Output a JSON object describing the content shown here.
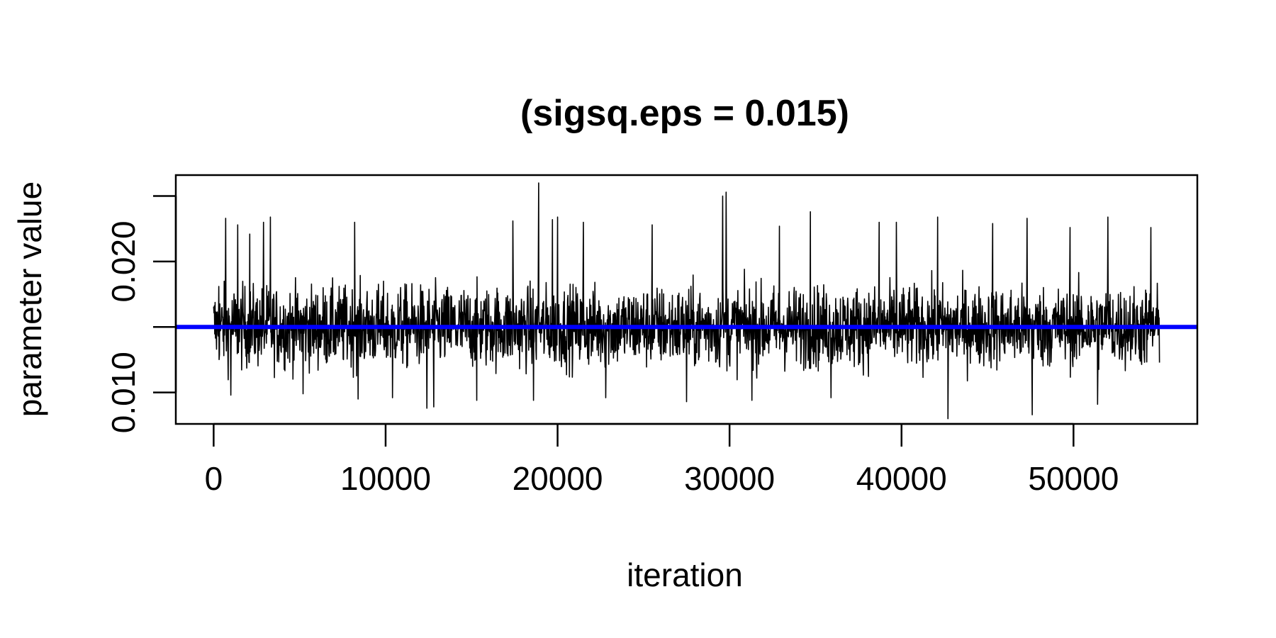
{
  "chart_data": {
    "type": "line",
    "title": "(sigsq.eps = 0.015)",
    "xlabel": "iteration",
    "ylabel": "parameter value",
    "xlim": [
      -2200,
      57200
    ],
    "ylim": [
      0.0076,
      0.0266
    ],
    "x_ticks": [
      0,
      10000,
      20000,
      30000,
      40000,
      50000
    ],
    "x_tick_labels": [
      "0",
      "10000",
      "20000",
      "30000",
      "40000",
      "50000"
    ],
    "y_ticks": [
      0.01,
      0.015,
      0.02,
      0.025
    ],
    "y_tick_labels": [
      "0.010",
      "",
      "0.020",
      ""
    ],
    "reference_line": {
      "y": 0.015,
      "color": "#0000ff"
    },
    "trace_color": "#000000",
    "series": [
      {
        "iterations": [
          0,
          55000
        ],
        "center": 0.015,
        "typical_range": [
          0.0118,
          0.0185
        ],
        "extremes": [
          {
            "x": 300,
            "y": 0.0181
          },
          {
            "x": 700,
            "y": 0.0233
          },
          {
            "x": 1000,
            "y": 0.0098
          },
          {
            "x": 1400,
            "y": 0.0228
          },
          {
            "x": 2100,
            "y": 0.0221
          },
          {
            "x": 2900,
            "y": 0.023
          },
          {
            "x": 3300,
            "y": 0.0234
          },
          {
            "x": 5200,
            "y": 0.0099
          },
          {
            "x": 8200,
            "y": 0.023
          },
          {
            "x": 8400,
            "y": 0.0095
          },
          {
            "x": 10400,
            "y": 0.0096
          },
          {
            "x": 12400,
            "y": 0.0088
          },
          {
            "x": 12800,
            "y": 0.0089
          },
          {
            "x": 15300,
            "y": 0.0094
          },
          {
            "x": 17400,
            "y": 0.0231
          },
          {
            "x": 18600,
            "y": 0.0094
          },
          {
            "x": 18900,
            "y": 0.026
          },
          {
            "x": 19700,
            "y": 0.0232
          },
          {
            "x": 20000,
            "y": 0.0234
          },
          {
            "x": 21500,
            "y": 0.023
          },
          {
            "x": 22800,
            "y": 0.0096
          },
          {
            "x": 25500,
            "y": 0.0228
          },
          {
            "x": 27500,
            "y": 0.0093
          },
          {
            "x": 29600,
            "y": 0.025
          },
          {
            "x": 29800,
            "y": 0.0253
          },
          {
            "x": 31300,
            "y": 0.0094
          },
          {
            "x": 32900,
            "y": 0.0227
          },
          {
            "x": 34700,
            "y": 0.0238
          },
          {
            "x": 35900,
            "y": 0.0096
          },
          {
            "x": 38700,
            "y": 0.023
          },
          {
            "x": 39700,
            "y": 0.023
          },
          {
            "x": 42100,
            "y": 0.0234
          },
          {
            "x": 42700,
            "y": 0.008
          },
          {
            "x": 45300,
            "y": 0.0229
          },
          {
            "x": 47300,
            "y": 0.0233
          },
          {
            "x": 47600,
            "y": 0.0083
          },
          {
            "x": 49800,
            "y": 0.0226
          },
          {
            "x": 51400,
            "y": 0.0091
          },
          {
            "x": 52000,
            "y": 0.0234
          },
          {
            "x": 54500,
            "y": 0.0226
          }
        ]
      }
    ],
    "grid": false,
    "legend": "none"
  }
}
